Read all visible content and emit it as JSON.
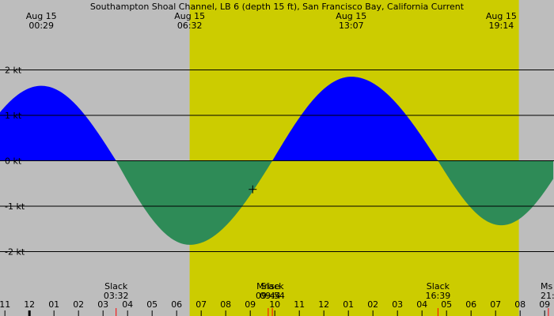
{
  "chart_data": {
    "type": "area",
    "title": "Southampton Shoal Channel, LB 6 (depth 15 ft), San Francisco Bay, California Current",
    "colors": {
      "night": "#bdbdbd",
      "day": "#cccc00",
      "flood": "#0000ff",
      "ebb": "#2e8b57",
      "grid": "#000000",
      "moon_marker": "#ff0000"
    },
    "x_unit": "hours (Aug 15, local)",
    "x_range": [
      -1.2,
      21.35
    ],
    "y_unit": "kt",
    "ylim": [
      -2.55,
      2.0
    ],
    "y_ticks": [
      {
        "value": 2,
        "label": "2 kt"
      },
      {
        "value": 1,
        "label": "1 kt"
      },
      {
        "value": 0,
        "label": "0 kt"
      },
      {
        "value": -1,
        "label": "-1 kt"
      },
      {
        "value": -2,
        "label": "-2 kt"
      }
    ],
    "daylight": {
      "sunrise": 6.53,
      "sunset": 19.95
    },
    "top_labels": [
      {
        "date": "Aug 15",
        "time": "00:29",
        "hour": 0.483
      },
      {
        "date": "Aug 15",
        "time": "06:32",
        "hour": 6.533
      },
      {
        "date": "Aug 15",
        "time": "13:07",
        "hour": 13.117
      },
      {
        "date": "Aug 15",
        "time": "19:14",
        "hour": 19.233
      }
    ],
    "extrema": [
      {
        "time": "00:29",
        "hour": 0.483,
        "value": 1.65
      },
      {
        "time": "06:32",
        "hour": 6.533,
        "value": -1.85
      },
      {
        "time": "13:07",
        "hour": 13.117,
        "value": 1.85
      },
      {
        "time": "19:14",
        "hour": 19.233,
        "value": -1.42
      }
    ],
    "slack_times": [
      3.533,
      9.9,
      16.65
    ],
    "start": {
      "hour": -1.2,
      "value": 1.1
    },
    "end": {
      "hour": 21.35,
      "value": -0.6
    },
    "events": [
      {
        "label": "Slack",
        "time": "03:32",
        "hour": 3.533
      },
      {
        "label": "Mrise",
        "time": "09:44",
        "hour": 9.733
      },
      {
        "label": "Slack",
        "time": "09:54",
        "hour": 9.9
      },
      {
        "label": "Slack",
        "time": "16:39",
        "hour": 16.65
      },
      {
        "label": "Ms",
        "time": "21:",
        "hour": 21.15
      }
    ],
    "hour_ticks": [
      {
        "hour": -1,
        "label": "11"
      },
      {
        "hour": 0,
        "label": "12"
      },
      {
        "hour": 1,
        "label": "01"
      },
      {
        "hour": 2,
        "label": "02"
      },
      {
        "hour": 3,
        "label": "03"
      },
      {
        "hour": 4,
        "label": "04"
      },
      {
        "hour": 5,
        "label": "05"
      },
      {
        "hour": 6,
        "label": "06"
      },
      {
        "hour": 7,
        "label": "07"
      },
      {
        "hour": 8,
        "label": "08"
      },
      {
        "hour": 9,
        "label": "09"
      },
      {
        "hour": 10,
        "label": "10"
      },
      {
        "hour": 11,
        "label": "11"
      },
      {
        "hour": 12,
        "label": "12"
      },
      {
        "hour": 13,
        "label": "01"
      },
      {
        "hour": 14,
        "label": "02"
      },
      {
        "hour": 15,
        "label": "03"
      },
      {
        "hour": 16,
        "label": "04"
      },
      {
        "hour": 17,
        "label": "05"
      },
      {
        "hour": 18,
        "label": "06"
      },
      {
        "hour": 19,
        "label": "07"
      },
      {
        "hour": 20,
        "label": "08"
      },
      {
        "hour": 21,
        "label": "09"
      }
    ],
    "cursor": {
      "hour": 9.1,
      "value": -0.63
    }
  }
}
